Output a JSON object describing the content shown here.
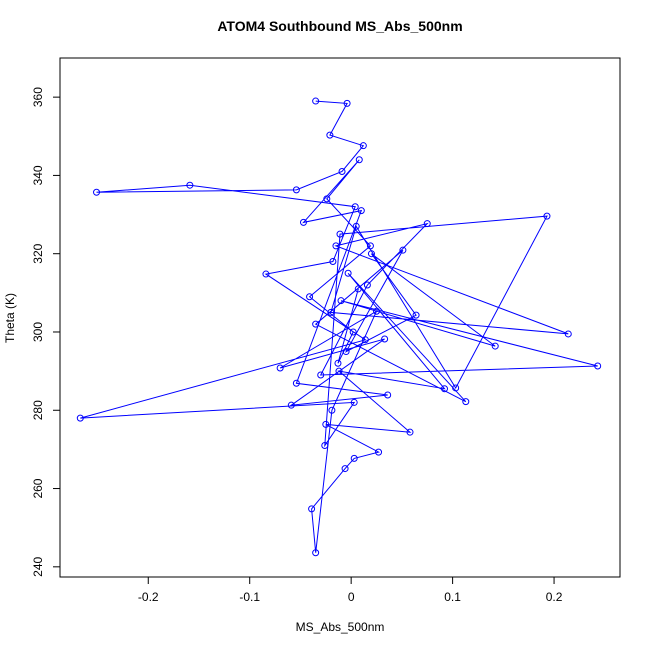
{
  "chart_data": {
    "type": "line",
    "title": "ATOM4 Southbound MS_Abs_500nm",
    "x_label": "MS_Abs_500nm",
    "y_label": "Theta (K)",
    "color": "#0000ff",
    "markers": true,
    "xlim": [
      -0.287,
      0.265
    ],
    "ylim": [
      237.4,
      370
    ],
    "xticks": [
      -0.2,
      -0.1,
      0,
      0.1,
      0.2
    ],
    "yticks": [
      240,
      260,
      280,
      300,
      320,
      340,
      360
    ],
    "x": [
      -0.035,
      -0.004,
      -0.021,
      0.012,
      -0.009,
      -0.054,
      -0.251,
      -0.159,
      0.004,
      -0.018,
      -0.084,
      0.014,
      -0.267,
      0.003,
      -0.026,
      -0.011,
      0.193,
      0.103,
      0.005,
      -0.02,
      0.214,
      -0.015,
      0.075,
      0.016,
      -0.03,
      0.243,
      -0.01,
      0.142,
      0.02,
      0.064,
      -0.005,
      0.051,
      -0.035,
      0.113,
      -0.003,
      0.092,
      -0.012,
      0.058,
      -0.025,
      0.027,
      0.003,
      -0.006,
      -0.039,
      -0.035,
      -0.019,
      0.025,
      -0.07,
      0.033,
      -0.059,
      0.036,
      -0.054,
      0.01,
      -0.047,
      0.008,
      -0.024,
      0.019,
      -0.041,
      0.002,
      -0.013,
      0.007
    ],
    "y": [
      359.0,
      358.4,
      350.3,
      347.6,
      341.0,
      336.3,
      335.7,
      337.5,
      332.0,
      318.0,
      314.8,
      298.0,
      278.0,
      282.0,
      271.0,
      325.0,
      329.6,
      285.7,
      327.0,
      305.0,
      299.5,
      322.0,
      327.7,
      312.0,
      289.0,
      291.3,
      308.0,
      296.4,
      320.0,
      304.3,
      295.0,
      320.9,
      302.0,
      282.2,
      315.0,
      285.5,
      290.0,
      274.4,
      276.4,
      269.3,
      267.7,
      265.1,
      254.8,
      243.6,
      280.0,
      305.3,
      290.8,
      298.2,
      281.3,
      283.9,
      286.9,
      331.0,
      328.0,
      344.0,
      334.0,
      322.0,
      309.0,
      300.0,
      292.0,
      311.0
    ]
  }
}
